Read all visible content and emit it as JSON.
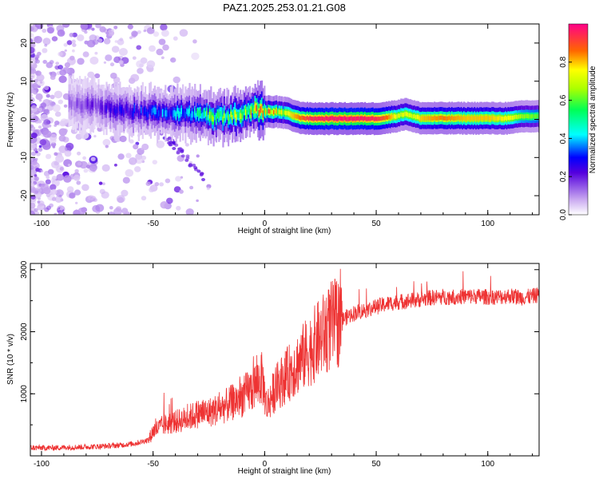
{
  "title": "PAZ1.2025.253.01.21.G08",
  "chart_data": [
    {
      "type": "heatmap",
      "title": "PAZ1.2025.253.01.21.G08",
      "xlabel": "Height of straight line (km)",
      "ylabel": "Frequency (Hz)",
      "xlim": [
        -105,
        123
      ],
      "ylim": [
        -25,
        25
      ],
      "xticks": [
        "-100",
        "-50",
        "0",
        "50",
        "100"
      ],
      "xtick_values": [
        -100,
        -50,
        0,
        50,
        100
      ],
      "yticks": [
        "-20",
        "-10",
        "0",
        "10",
        "20"
      ],
      "ytick_values": [
        -20,
        -10,
        0,
        10,
        20
      ],
      "ridge": {
        "x": [
          -85,
          -75,
          -65,
          -55,
          -45,
          -35,
          -25,
          -15,
          -5,
          0,
          5,
          10,
          15,
          20,
          30,
          40,
          50,
          55,
          60,
          63,
          66,
          70,
          80,
          90,
          100,
          110,
          115,
          123
        ],
        "y": [
          4,
          3.5,
          2.5,
          2,
          1.5,
          1.5,
          0.8,
          0.8,
          2.5,
          2,
          2,
          1.5,
          0.5,
          0.2,
          0.2,
          0.2,
          0.2,
          0.5,
          1,
          1.5,
          0.8,
          0.3,
          0.3,
          0.3,
          0.3,
          0.3,
          0.8,
          0.8
        ],
        "amplitude": [
          0.15,
          0.2,
          0.25,
          0.3,
          0.35,
          0.4,
          0.55,
          0.6,
          0.75,
          0.8,
          0.8,
          0.75,
          0.85,
          0.95,
          0.98,
          0.98,
          0.95,
          0.85,
          0.7,
          0.75,
          0.7,
          0.8,
          0.85,
          0.8,
          0.8,
          0.75,
          0.65,
          0.6
        ]
      },
      "colorbar": {
        "label": "Normalized spectral amplitude",
        "range": [
          0,
          1
        ],
        "ticks": [
          "0.0",
          "0.2",
          "0.4",
          "0.6",
          "0.8"
        ],
        "tick_values": [
          0.0,
          0.2,
          0.4,
          0.6,
          0.8
        ]
      }
    },
    {
      "type": "line",
      "xlabel": "Height of straight line (km)",
      "ylabel": "SNR (10 * v/v)",
      "xlim": [
        -105,
        123
      ],
      "ylim": [
        0,
        3100
      ],
      "xticks": [
        "-100",
        "-50",
        "0",
        "50",
        "100"
      ],
      "xtick_values": [
        -100,
        -50,
        0,
        50,
        100
      ],
      "yticks": [
        "1000",
        "2000",
        "3000"
      ],
      "ytick_values": [
        1000,
        2000,
        3000
      ],
      "series": [
        {
          "name": "SNR",
          "color": "#ee3333",
          "x": [
            -105,
            -95,
            -85,
            -75,
            -65,
            -58,
            -52,
            -50,
            -45,
            -40,
            -35,
            -30,
            -25,
            -20,
            -15,
            -10,
            -5,
            -3,
            -1,
            0,
            1,
            3,
            5,
            10,
            15,
            20,
            25,
            30,
            35,
            40,
            45,
            50,
            55,
            60,
            65,
            70,
            75,
            80,
            85,
            90,
            95,
            100,
            105,
            110,
            115,
            120,
            123
          ],
          "y": [
            130,
            130,
            140,
            150,
            170,
            200,
            260,
            400,
            500,
            550,
            600,
            680,
            700,
            760,
            850,
            950,
            1100,
            1200,
            1250,
            1000,
            800,
            950,
            1100,
            1300,
            1500,
            1700,
            1900,
            2100,
            2200,
            2300,
            2350,
            2400,
            2450,
            2480,
            2500,
            2520,
            2550,
            2560,
            2560,
            2570,
            2570,
            2560,
            2560,
            2580,
            2550,
            2570,
            2600
          ]
        }
      ]
    }
  ]
}
